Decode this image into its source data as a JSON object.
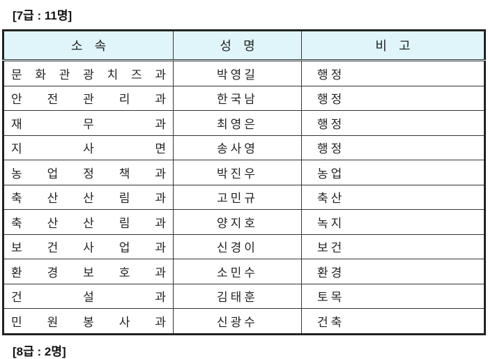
{
  "headings": [
    "[7급 : 11명]",
    "[8급 : 2명]"
  ],
  "table": {
    "headers": [
      "소   속",
      "성   명",
      "비   고"
    ],
    "rows": [
      {
        "dept": "문 화 관 광 치 즈 과",
        "name": "박영길",
        "note": "행정"
      },
      {
        "dept": "안 전 관 리 과",
        "name": "한국남",
        "note": "행정"
      },
      {
        "dept": "재 무 과",
        "name": "최영은",
        "note": "행정"
      },
      {
        "dept": "지 사 면",
        "name": "송사영",
        "note": "행정"
      },
      {
        "dept": "농 업 정 책 과",
        "name": "박진우",
        "note": "농업"
      },
      {
        "dept": "축 산 산 림 과",
        "name": "고민규",
        "note": "축산"
      },
      {
        "dept": "축 산 산 림 과",
        "name": "양지호",
        "note": "녹지"
      },
      {
        "dept": "보 건 사 업 과",
        "name": "신경이",
        "note": "보건"
      },
      {
        "dept": "환 경 보 호 과",
        "name": "소민수",
        "note": "환경"
      },
      {
        "dept": "건 설 과",
        "name": "김태훈",
        "note": "토목"
      },
      {
        "dept": "민 원 봉 사 과",
        "name": "신광수",
        "note": "건축"
      }
    ]
  }
}
